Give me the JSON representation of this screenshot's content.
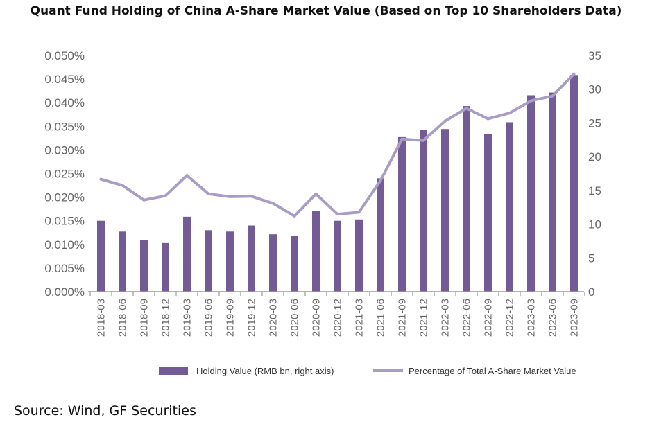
{
  "title": "Quant Fund Holding of China A-Share Market Value (Based on Top 10 Shareholders Data)",
  "source": "Source: Wind, GF Securities",
  "colors": {
    "bar": "#735c96",
    "line": "#a99cc7",
    "axis": "#999999",
    "tick": "#666666"
  },
  "chart_data": {
    "type": "bar",
    "title": "Quant Fund Holding of China A-Share Market Value (Based on Top 10 Shareholders Data)",
    "categories": [
      "2018-03",
      "2018-06",
      "2018-09",
      "2018-12",
      "2019-03",
      "2019-06",
      "2019-09",
      "2019-12",
      "2020-03",
      "2020-06",
      "2020-09",
      "2020-12",
      "2021-03",
      "2021-06",
      "2021-09",
      "2021-12",
      "2022-03",
      "2022-06",
      "2022-09",
      "2022-12",
      "2023-03",
      "2023-06",
      "2023-09"
    ],
    "series": [
      {
        "name": "Holding Value (RMB bn, right axis)",
        "type": "bar",
        "axis": "right",
        "values": [
          10.5,
          8.9,
          7.6,
          7.2,
          11.1,
          9.1,
          8.9,
          9.8,
          8.5,
          8.3,
          12.0,
          10.5,
          10.7,
          16.8,
          22.9,
          24.0,
          24.1,
          27.5,
          23.4,
          25.1,
          29.1,
          29.5,
          32.1
        ]
      },
      {
        "name": "Percentage of Total A-Share Market Value",
        "type": "line",
        "axis": "left",
        "values": [
          0.0238,
          0.0225,
          0.0194,
          0.0203,
          0.0246,
          0.0207,
          0.0201,
          0.0202,
          0.0187,
          0.016,
          0.0207,
          0.0164,
          0.0168,
          0.0235,
          0.0323,
          0.032,
          0.0361,
          0.0388,
          0.0366,
          0.0378,
          0.0404,
          0.0414,
          0.0461
        ]
      }
    ],
    "y_left": {
      "ylim": [
        0,
        0.05
      ],
      "ticks": [
        "0.000%",
        "0.005%",
        "0.010%",
        "0.015%",
        "0.020%",
        "0.025%",
        "0.030%",
        "0.035%",
        "0.040%",
        "0.045%",
        "0.050%"
      ]
    },
    "y_right": {
      "ylim": [
        0,
        35
      ],
      "ticks": [
        "0",
        "5",
        "10",
        "15",
        "20",
        "25",
        "30",
        "35"
      ]
    },
    "grid": false,
    "legend": "bottom"
  }
}
